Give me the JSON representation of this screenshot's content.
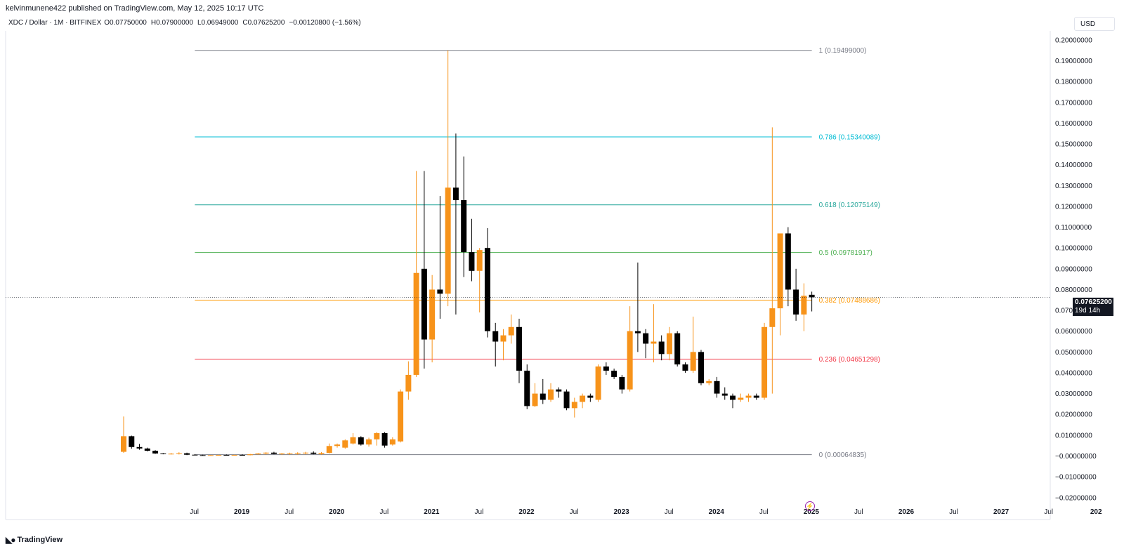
{
  "header": {
    "publisher_line": "kelvinmunene422 published on TradingView.com, May 12, 2025 10:17 UTC"
  },
  "symbol_bar": {
    "symbol": "XDC / Dollar · 1M · BITFINEX",
    "open_key": "O",
    "open": "0.07750000",
    "high_key": "H",
    "high": "0.07900000",
    "low_key": "L",
    "low": "0.06949000",
    "close_key": "C",
    "close": "0.07625200",
    "change": "−0.00120800 (−1.56%)"
  },
  "currency_button": "USD",
  "price_tag": {
    "price": "0.07625200",
    "countdown": "19d 14h"
  },
  "footer": {
    "logo_text": "TradingView"
  },
  "colors": {
    "up": "#f7931a",
    "down": "#000000",
    "fib_1": "#787b86",
    "fib_0786": "#00bcd4",
    "fib_0618": "#26a69a",
    "fib_05": "#4caf50",
    "fib_0382": "#ff9800",
    "fib_0236": "#f23645",
    "fib_0": "#787b86",
    "accent_purple": "#9c27b0"
  },
  "chart_data": {
    "type": "candlestick",
    "title": "XDC / Dollar · 1M · BITFINEX",
    "y_axis": {
      "position": "right",
      "ylim": [
        -0.022,
        0.205
      ],
      "ticks": [
        "0.20000000",
        "0.19000000",
        "0.18000000",
        "0.17000000",
        "0.16000000",
        "0.15000000",
        "0.14000000",
        "0.13000000",
        "0.12000000",
        "0.11000000",
        "0.10000000",
        "0.09000000",
        "0.08000000",
        "0.07000000",
        "0.06000000",
        "0.05000000",
        "0.04000000",
        "0.03000000",
        "0.02000000",
        "0.01000000",
        "−0.00000000",
        "−0.01000000",
        "−0.02000000"
      ],
      "tick_values": [
        0.2,
        0.19,
        0.18,
        0.17,
        0.16,
        0.15,
        0.14,
        0.13,
        0.12,
        0.11,
        0.1,
        0.09,
        0.08,
        0.07,
        0.06,
        0.05,
        0.04,
        0.03,
        0.02,
        0.01,
        0.0,
        -0.01,
        -0.02
      ]
    },
    "x_axis": {
      "labels": [
        "Jul",
        "2019",
        "Jul",
        "2020",
        "Jul",
        "2021",
        "Jul",
        "2022",
        "Jul",
        "2023",
        "Jul",
        "2024",
        "Jul",
        "2025",
        "Jul",
        "2026",
        "Jul",
        "2027",
        "Jul",
        "202"
      ],
      "label_month_index": [
        6,
        12,
        18,
        24,
        30,
        36,
        42,
        48,
        54,
        60,
        66,
        72,
        78,
        84,
        90,
        96,
        102,
        108,
        114,
        120
      ]
    },
    "fibonacci": [
      {
        "level": "1",
        "value": "0.19499000",
        "price": 0.19499,
        "color_key": "fib_1"
      },
      {
        "level": "0.786",
        "value": "0.15340089",
        "price": 0.15340089,
        "color_key": "fib_0786"
      },
      {
        "level": "0.618",
        "value": "0.12075149",
        "price": 0.12075149,
        "color_key": "fib_0618"
      },
      {
        "level": "0.5",
        "value": "0.09781917",
        "price": 0.09781917,
        "color_key": "fib_05"
      },
      {
        "level": "0.382",
        "value": "0.07488686",
        "price": 0.07488686,
        "color_key": "fib_0382"
      },
      {
        "level": "0.236",
        "value": "0.04651298",
        "price": 0.04651298,
        "color_key": "fib_0236"
      },
      {
        "level": "0",
        "value": "0.00064835",
        "price": 0.00064835,
        "color_key": "fib_0"
      }
    ],
    "fib_start_month": 9,
    "fib_end_month": 87,
    "first_month": "2018-01",
    "candles": [
      {
        "date": "2018-01",
        "o": 0.002,
        "h": 0.019,
        "l": 0.0015,
        "c": 0.0095
      },
      {
        "date": "2018-02",
        "o": 0.0095,
        "h": 0.0098,
        "l": 0.0035,
        "c": 0.0043
      },
      {
        "date": "2018-03",
        "o": 0.0043,
        "h": 0.0058,
        "l": 0.003,
        "c": 0.0036
      },
      {
        "date": "2018-04",
        "o": 0.0036,
        "h": 0.004,
        "l": 0.0022,
        "c": 0.0025
      },
      {
        "date": "2018-05",
        "o": 0.0025,
        "h": 0.0028,
        "l": 0.001,
        "c": 0.0012
      },
      {
        "date": "2018-06",
        "o": 0.0012,
        "h": 0.0014,
        "l": 0.0008,
        "c": 0.001
      },
      {
        "date": "2018-07",
        "o": 0.001,
        "h": 0.0015,
        "l": 0.0007,
        "c": 0.0011
      },
      {
        "date": "2018-08",
        "o": 0.0011,
        "h": 0.0018,
        "l": 0.0007,
        "c": 0.0013
      },
      {
        "date": "2018-09",
        "o": 0.0013,
        "h": 0.0016,
        "l": 0.0004,
        "c": 0.0006
      },
      {
        "date": "2018-10",
        "o": 0.0006,
        "h": 0.0009,
        "l": 0.0003,
        "c": 0.0004
      },
      {
        "date": "2018-11",
        "o": 0.0004,
        "h": 0.0006,
        "l": 0.0002,
        "c": 0.0003
      },
      {
        "date": "2018-12",
        "o": 0.0003,
        "h": 0.0005,
        "l": 0.0002,
        "c": 0.0004
      },
      {
        "date": "2019-01",
        "o": 0.0004,
        "h": 0.0006,
        "l": 0.0003,
        "c": 0.0005
      },
      {
        "date": "2019-02",
        "o": 0.0005,
        "h": 0.0007,
        "l": 0.0003,
        "c": 0.0004
      },
      {
        "date": "2019-03",
        "o": 0.0004,
        "h": 0.0006,
        "l": 0.0003,
        "c": 0.0005
      },
      {
        "date": "2019-04",
        "o": 0.0005,
        "h": 0.0008,
        "l": 0.0003,
        "c": 0.0004
      },
      {
        "date": "2019-05",
        "o": 0.0004,
        "h": 0.001,
        "l": 0.0003,
        "c": 0.0008
      },
      {
        "date": "2019-06",
        "o": 0.0008,
        "h": 0.0014,
        "l": 0.0006,
        "c": 0.0012
      },
      {
        "date": "2019-07",
        "o": 0.0012,
        "h": 0.0018,
        "l": 0.0007,
        "c": 0.0016
      },
      {
        "date": "2019-08",
        "o": 0.0016,
        "h": 0.002,
        "l": 0.0008,
        "c": 0.001
      },
      {
        "date": "2019-09",
        "o": 0.001,
        "h": 0.0014,
        "l": 0.0005,
        "c": 0.0012
      },
      {
        "date": "2019-10",
        "o": 0.0012,
        "h": 0.0016,
        "l": 0.0006,
        "c": 0.0013
      },
      {
        "date": "2019-11",
        "o": 0.0013,
        "h": 0.0018,
        "l": 0.0006,
        "c": 0.0015
      },
      {
        "date": "2019-12",
        "o": 0.0015,
        "h": 0.002,
        "l": 0.0008,
        "c": 0.0016
      },
      {
        "date": "2020-01",
        "o": 0.0016,
        "h": 0.0022,
        "l": 0.0008,
        "c": 0.001
      },
      {
        "date": "2020-02",
        "o": 0.001,
        "h": 0.0019,
        "l": 0.0006,
        "c": 0.0015
      },
      {
        "date": "2020-03",
        "o": 0.0015,
        "h": 0.006,
        "l": 0.0012,
        "c": 0.0048
      },
      {
        "date": "2020-04",
        "o": 0.0048,
        "h": 0.006,
        "l": 0.004,
        "c": 0.0055
      },
      {
        "date": "2020-05",
        "o": 0.004,
        "h": 0.008,
        "l": 0.0035,
        "c": 0.0075
      },
      {
        "date": "2020-06",
        "o": 0.006,
        "h": 0.011,
        "l": 0.0055,
        "c": 0.009
      },
      {
        "date": "2020-07",
        "o": 0.009,
        "h": 0.0095,
        "l": 0.005,
        "c": 0.0055
      },
      {
        "date": "2020-08",
        "o": 0.0055,
        "h": 0.0088,
        "l": 0.0045,
        "c": 0.008
      },
      {
        "date": "2020-09",
        "o": 0.008,
        "h": 0.0115,
        "l": 0.005,
        "c": 0.011
      },
      {
        "date": "2020-10",
        "o": 0.011,
        "h": 0.0115,
        "l": 0.004,
        "c": 0.005
      },
      {
        "date": "2020-11",
        "o": 0.0055,
        "h": 0.009,
        "l": 0.005,
        "c": 0.008
      },
      {
        "date": "2020-12",
        "o": 0.007,
        "h": 0.032,
        "l": 0.0065,
        "c": 0.031
      },
      {
        "date": "2021-01",
        "o": 0.031,
        "h": 0.0455,
        "l": 0.027,
        "c": 0.039
      },
      {
        "date": "2021-02",
        "o": 0.039,
        "h": 0.137,
        "l": 0.038,
        "c": 0.088
      },
      {
        "date": "2021-03",
        "o": 0.09,
        "h": 0.137,
        "l": 0.042,
        "c": 0.056
      },
      {
        "date": "2021-04",
        "o": 0.056,
        "h": 0.087,
        "l": 0.045,
        "c": 0.08
      },
      {
        "date": "2021-05",
        "o": 0.08,
        "h": 0.125,
        "l": 0.066,
        "c": 0.078
      },
      {
        "date": "2021-06",
        "o": 0.078,
        "h": 0.195,
        "l": 0.072,
        "c": 0.129
      },
      {
        "date": "2021-07",
        "o": 0.129,
        "h": 0.155,
        "l": 0.068,
        "c": 0.123
      },
      {
        "date": "2021-08",
        "o": 0.123,
        "h": 0.144,
        "l": 0.086,
        "c": 0.098
      },
      {
        "date": "2021-09",
        "o": 0.098,
        "h": 0.114,
        "l": 0.084,
        "c": 0.089
      },
      {
        "date": "2021-10",
        "o": 0.089,
        "h": 0.1,
        "l": 0.069,
        "c": 0.099
      },
      {
        "date": "2021-11",
        "o": 0.1,
        "h": 0.1095,
        "l": 0.057,
        "c": 0.06
      },
      {
        "date": "2021-12",
        "o": 0.06,
        "h": 0.064,
        "l": 0.043,
        "c": 0.055
      },
      {
        "date": "2022-01",
        "o": 0.055,
        "h": 0.061,
        "l": 0.046,
        "c": 0.058
      },
      {
        "date": "2022-02",
        "o": 0.058,
        "h": 0.068,
        "l": 0.054,
        "c": 0.062
      },
      {
        "date": "2022-03",
        "o": 0.062,
        "h": 0.066,
        "l": 0.035,
        "c": 0.041
      },
      {
        "date": "2022-04",
        "o": 0.041,
        "h": 0.044,
        "l": 0.0225,
        "c": 0.024
      },
      {
        "date": "2022-05",
        "o": 0.024,
        "h": 0.035,
        "l": 0.0235,
        "c": 0.03
      },
      {
        "date": "2022-06",
        "o": 0.03,
        "h": 0.037,
        "l": 0.025,
        "c": 0.027
      },
      {
        "date": "2022-07",
        "o": 0.027,
        "h": 0.035,
        "l": 0.026,
        "c": 0.032
      },
      {
        "date": "2022-08",
        "o": 0.032,
        "h": 0.033,
        "l": 0.028,
        "c": 0.031
      },
      {
        "date": "2022-09",
        "o": 0.031,
        "h": 0.032,
        "l": 0.022,
        "c": 0.023
      },
      {
        "date": "2022-10",
        "o": 0.023,
        "h": 0.028,
        "l": 0.0185,
        "c": 0.026
      },
      {
        "date": "2022-11",
        "o": 0.026,
        "h": 0.03,
        "l": 0.023,
        "c": 0.029
      },
      {
        "date": "2022-12",
        "o": 0.029,
        "h": 0.03,
        "l": 0.026,
        "c": 0.028
      },
      {
        "date": "2023-01",
        "o": 0.027,
        "h": 0.044,
        "l": 0.026,
        "c": 0.043
      },
      {
        "date": "2023-02",
        "o": 0.043,
        "h": 0.045,
        "l": 0.039,
        "c": 0.041
      },
      {
        "date": "2023-03",
        "o": 0.041,
        "h": 0.042,
        "l": 0.037,
        "c": 0.038
      },
      {
        "date": "2023-04",
        "o": 0.038,
        "h": 0.039,
        "l": 0.03,
        "c": 0.032
      },
      {
        "date": "2023-05",
        "o": 0.032,
        "h": 0.072,
        "l": 0.031,
        "c": 0.06
      },
      {
        "date": "2023-06",
        "o": 0.06,
        "h": 0.093,
        "l": 0.05,
        "c": 0.059
      },
      {
        "date": "2023-07",
        "o": 0.059,
        "h": 0.061,
        "l": 0.047,
        "c": 0.054
      },
      {
        "date": "2023-08",
        "o": 0.054,
        "h": 0.073,
        "l": 0.045,
        "c": 0.055
      },
      {
        "date": "2023-09",
        "o": 0.055,
        "h": 0.058,
        "l": 0.046,
        "c": 0.049
      },
      {
        "date": "2023-10",
        "o": 0.049,
        "h": 0.062,
        "l": 0.046,
        "c": 0.059
      },
      {
        "date": "2023-11",
        "o": 0.059,
        "h": 0.06,
        "l": 0.043,
        "c": 0.044
      },
      {
        "date": "2023-12",
        "o": 0.044,
        "h": 0.045,
        "l": 0.04,
        "c": 0.041
      },
      {
        "date": "2024-01",
        "o": 0.041,
        "h": 0.067,
        "l": 0.04,
        "c": 0.05
      },
      {
        "date": "2024-02",
        "o": 0.05,
        "h": 0.051,
        "l": 0.034,
        "c": 0.035
      },
      {
        "date": "2024-03",
        "o": 0.035,
        "h": 0.037,
        "l": 0.034,
        "c": 0.036
      },
      {
        "date": "2024-04",
        "o": 0.036,
        "h": 0.038,
        "l": 0.028,
        "c": 0.03
      },
      {
        "date": "2024-05",
        "o": 0.03,
        "h": 0.033,
        "l": 0.027,
        "c": 0.029
      },
      {
        "date": "2024-06",
        "o": 0.029,
        "h": 0.03,
        "l": 0.023,
        "c": 0.027
      },
      {
        "date": "2024-07",
        "o": 0.027,
        "h": 0.03,
        "l": 0.026,
        "c": 0.028
      },
      {
        "date": "2024-08",
        "o": 0.028,
        "h": 0.03,
        "l": 0.026,
        "c": 0.029
      },
      {
        "date": "2024-09",
        "o": 0.029,
        "h": 0.03,
        "l": 0.027,
        "c": 0.028
      },
      {
        "date": "2024-10",
        "o": 0.028,
        "h": 0.064,
        "l": 0.027,
        "c": 0.062
      },
      {
        "date": "2024-11",
        "o": 0.062,
        "h": 0.158,
        "l": 0.03,
        "c": 0.071
      },
      {
        "date": "2024-12",
        "o": 0.071,
        "h": 0.107,
        "l": 0.058,
        "c": 0.107
      },
      {
        "date": "2025-01",
        "o": 0.107,
        "h": 0.11,
        "l": 0.072,
        "c": 0.08
      },
      {
        "date": "2025-02",
        "o": 0.08,
        "h": 0.09,
        "l": 0.065,
        "c": 0.068
      },
      {
        "date": "2025-03",
        "o": 0.068,
        "h": 0.083,
        "l": 0.06,
        "c": 0.077
      },
      {
        "date": "2025-04",
        "o": 0.0775,
        "h": 0.079,
        "l": 0.0695,
        "c": 0.0763
      }
    ]
  }
}
